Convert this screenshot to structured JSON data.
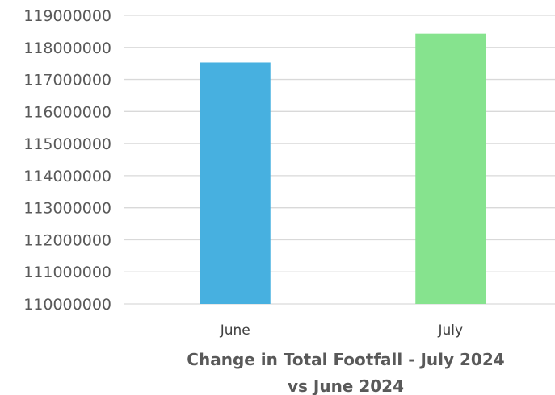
{
  "chart_data": {
    "type": "bar",
    "title_lines": [
      "Change in Total Footfall - July 2024",
      "vs June 2024"
    ],
    "categories": [
      "June",
      "July"
    ],
    "series": [
      {
        "values": [
          117530000,
          118430000
        ],
        "colors": [
          "#47b0e0",
          "#86e38e"
        ]
      }
    ],
    "ylim": [
      110000000,
      119000000
    ],
    "yticks": [
      "110000000",
      "111000000",
      "112000000",
      "113000000",
      "114000000",
      "115000000",
      "116000000",
      "117000000",
      "118000000",
      "119000000"
    ],
    "grid": true,
    "legend": "none"
  }
}
